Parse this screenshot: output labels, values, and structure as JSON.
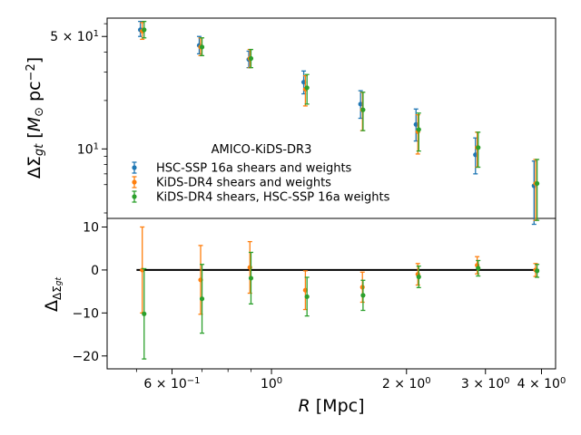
{
  "chart_data": [
    {
      "type": "scatter",
      "panel": "top",
      "yscale": "log",
      "xscale": "log",
      "ylabel": "ΔΣgt [M⊙ pc⁻²]",
      "ylabel_main": "ΔΣ",
      "ylabel_sub": "gt",
      "ylabel_units_open": " [",
      "ylabel_units_M": "M",
      "ylabel_units_sun": "⊙",
      "ylabel_units_pc": " pc",
      "ylabel_units_exp": "−2",
      "ylabel_units_close": "]",
      "ylim": [
        3.7,
        65
      ],
      "yticks": [
        {
          "value": 50,
          "base": "5 × 10",
          "exp": "1"
        },
        {
          "value": 10,
          "base": "10",
          "exp": "1"
        }
      ],
      "legend": {
        "title": "AMICO-KiDS-DR3",
        "position": "lower-left"
      },
      "series": [
        {
          "name": "HSC-SSP 16a shears and weights",
          "color": "#1f77b4",
          "x": [
            0.51,
            0.69,
            0.89,
            1.18,
            1.58,
            2.1,
            2.85,
            3.85
          ],
          "y": [
            55,
            44,
            36,
            26,
            19,
            14.2,
            9.2,
            5.9
          ],
          "yerr_lo": [
            5,
            5,
            4,
            4,
            3.5,
            3,
            2.2,
            2.5
          ],
          "yerr_hi": [
            7,
            6,
            4.5,
            4.5,
            4,
            3.5,
            2.5,
            2.5
          ]
        },
        {
          "name": "KiDS-DR4 shears and weights",
          "color": "#ff7f0e",
          "x": [
            0.515,
            0.695,
            0.895,
            1.19,
            1.595,
            2.12,
            2.875,
            3.88
          ],
          "y": [
            54,
            43,
            36.5,
            23.5,
            17.5,
            12.8,
            10.2,
            6.1
          ],
          "yerr_lo": [
            6,
            5,
            4.5,
            5,
            4.5,
            3.5,
            2.5,
            2.5
          ],
          "yerr_hi": [
            7,
            6,
            5,
            5,
            5,
            3.5,
            2.5,
            2.5
          ]
        },
        {
          "name": "KiDS-DR4 shears, HSC-SSP 16a weights",
          "color": "#2ca02c",
          "x": [
            0.52,
            0.7,
            0.9,
            1.2,
            1.6,
            2.13,
            2.89,
            3.91
          ],
          "y": [
            55,
            43,
            36.5,
            24,
            17.5,
            13.2,
            10.2,
            6.1
          ],
          "yerr_lo": [
            6,
            5,
            4.5,
            5,
            4.5,
            3.5,
            2.5,
            2.5
          ],
          "yerr_hi": [
            7,
            6,
            5,
            5,
            5,
            3.5,
            2.5,
            2.5
          ]
        }
      ]
    },
    {
      "type": "scatter",
      "panel": "bottom",
      "xscale": "log",
      "xlabel": "R [Mpc]",
      "xlabel_var": "R",
      "xlabel_units": " [Mpc]",
      "ylabel": "ΔΔΣgt",
      "ylabel_main": "Δ",
      "ylabel_sub1": "ΔΣ",
      "ylabel_sub2": "gt",
      "ylim": [
        -23,
        12
      ],
      "xlim": [
        0.43,
        4.3
      ],
      "yticks": [
        10,
        0,
        -10,
        -20
      ],
      "xticks": [
        {
          "value": 0.6,
          "base": "6 × 10",
          "exp": "−1"
        },
        {
          "value": 1.0,
          "base": "10",
          "exp": "0"
        },
        {
          "value": 2.0,
          "base": "2 × 10",
          "exp": "0"
        },
        {
          "value": 3.0,
          "base": "3 × 10",
          "exp": "0"
        },
        {
          "value": 4.0,
          "base": "4 × 10",
          "exp": "0"
        }
      ],
      "reference_line": 0,
      "series": [
        {
          "name": "KiDS-DR4 shears and weights",
          "color": "#ff7f0e",
          "x": [
            0.515,
            0.695,
            0.895,
            1.19,
            1.595,
            2.12,
            2.875,
            3.88
          ],
          "y": [
            0.0,
            -2.3,
            0.6,
            -4.7,
            -4.0,
            -1.0,
            1.1,
            0.0
          ],
          "yerr_lo": [
            10,
            8,
            6,
            4.5,
            3.5,
            2.5,
            2.0,
            1.5
          ],
          "yerr_hi": [
            10,
            8,
            6,
            4.5,
            3.5,
            2.5,
            2.0,
            1.5
          ]
        },
        {
          "name": "KiDS-DR4 shears, HSC-SSP 16a weights",
          "color": "#2ca02c",
          "x": [
            0.52,
            0.7,
            0.9,
            1.2,
            1.6,
            2.13,
            2.89,
            3.91
          ],
          "y": [
            -10.2,
            -6.7,
            -1.9,
            -6.2,
            -5.9,
            -1.6,
            0.4,
            -0.2
          ],
          "yerr_lo": [
            10.5,
            8,
            6,
            4.5,
            3.5,
            2.5,
            1.8,
            1.5
          ],
          "yerr_hi": [
            10.5,
            8,
            6,
            4.5,
            3.5,
            2.5,
            1.8,
            1.5
          ]
        }
      ]
    }
  ]
}
